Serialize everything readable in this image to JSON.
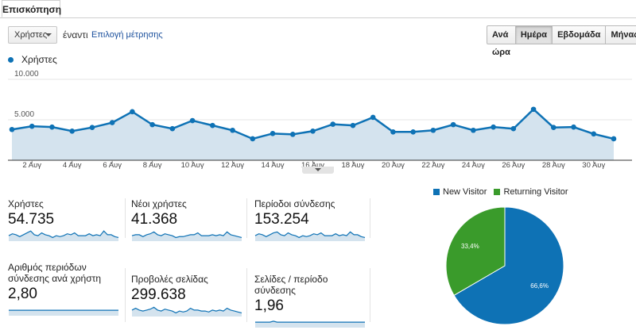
{
  "tabs": [
    {
      "label": "Επισκόπηση"
    }
  ],
  "controls": {
    "metric_select": "Χρήστες",
    "vs_label": "έναντι",
    "choose_metric": "Επιλογή μέτρησης",
    "periods": [
      "Ανά ώρα",
      "Ημέρα",
      "Εβδομάδα",
      "Μήνας"
    ],
    "active_period": "Ημέρα"
  },
  "colors": {
    "accent": "#0e72b5",
    "area": "#d4e3ee",
    "returning": "#3a9b2b"
  },
  "chart_data": [
    {
      "type": "area",
      "title": "",
      "legend": "Χρήστες",
      "x": [
        1,
        2,
        3,
        4,
        5,
        6,
        7,
        8,
        9,
        10,
        11,
        12,
        13,
        14,
        15,
        16,
        17,
        18,
        19,
        20,
        21,
        22,
        23,
        24,
        25,
        26,
        27,
        28,
        29,
        30,
        31
      ],
      "values": [
        3800,
        4200,
        4100,
        3600,
        4050,
        4650,
        6000,
        4400,
        3900,
        4900,
        4300,
        3700,
        2650,
        3300,
        3200,
        3600,
        4450,
        4300,
        5300,
        3500,
        3500,
        3700,
        4400,
        3700,
        4100,
        3900,
        6300,
        4050,
        4100,
        3250,
        2650
      ],
      "xticks": [
        "2 Αυγ",
        "4 Αυγ",
        "6 Αυγ",
        "8 Αυγ",
        "10 Αυγ",
        "12 Αυγ",
        "14 Αυγ",
        "16 Αυγ",
        "18 Αυγ",
        "20 Αυγ",
        "22 Αυγ",
        "24 Αυγ",
        "26 Αυγ",
        "28 Αυγ",
        "30 Αυγ"
      ],
      "yticks": [
        "10.000",
        "5.000"
      ],
      "ylim": [
        0,
        10000
      ]
    },
    {
      "type": "pie",
      "legend": [
        "New Visitor",
        "Returning Visitor"
      ],
      "values": [
        66.6,
        33.4
      ],
      "labels": [
        "66,6%",
        "33,4%"
      ]
    }
  ],
  "metrics": [
    {
      "label": "Χρήστες",
      "value": "54.735",
      "spark": [
        5,
        7,
        6,
        4,
        6,
        8,
        10,
        6,
        5,
        8,
        6,
        5,
        3,
        5,
        4,
        5,
        7,
        6,
        8,
        5,
        5,
        5,
        7,
        5,
        6,
        5,
        10,
        6,
        6,
        4,
        3
      ]
    },
    {
      "label": "Νέοι χρήστες",
      "value": "41.368",
      "spark": [
        5,
        6,
        6,
        4,
        6,
        7,
        9,
        6,
        5,
        7,
        6,
        5,
        3,
        4,
        4,
        5,
        6,
        6,
        8,
        5,
        5,
        5,
        6,
        5,
        6,
        5,
        9,
        6,
        5,
        4,
        3
      ]
    },
    {
      "label": "Περίοδοι σύνδεσης",
      "value": "153.254",
      "spark": [
        5,
        7,
        6,
        4,
        6,
        8,
        9,
        6,
        5,
        8,
        6,
        5,
        3,
        5,
        4,
        5,
        7,
        6,
        8,
        5,
        5,
        5,
        7,
        5,
        6,
        5,
        9,
        6,
        6,
        4,
        3
      ]
    },
    {
      "label": "Αριθμός περιόδων σύνδεσης ανά χρήστη",
      "value": "2,80",
      "spark": [
        5,
        5,
        5,
        5,
        5,
        5,
        5,
        5,
        5,
        5,
        5,
        5,
        5,
        5,
        5,
        5,
        5,
        5,
        5,
        5,
        5,
        5,
        5,
        5,
        5,
        5,
        5,
        5,
        5,
        5,
        5
      ]
    },
    {
      "label": "Προβολές σελίδας",
      "value": "299.638",
      "spark": [
        6,
        8,
        6,
        5,
        6,
        7,
        9,
        6,
        5,
        7,
        6,
        5,
        3,
        5,
        4,
        5,
        8,
        6,
        6,
        5,
        5,
        4,
        6,
        5,
        6,
        5,
        8,
        6,
        5,
        4,
        3
      ]
    },
    {
      "label": "Σελίδες / περίοδο σύνδεσης",
      "value": "1,96",
      "spark": [
        5,
        5,
        5,
        5,
        5,
        6,
        5,
        5,
        5,
        5,
        5,
        5,
        5,
        5,
        5,
        5,
        5,
        5,
        5,
        5,
        5,
        5,
        5,
        5,
        5,
        5,
        5,
        5,
        5,
        5,
        5
      ]
    }
  ]
}
